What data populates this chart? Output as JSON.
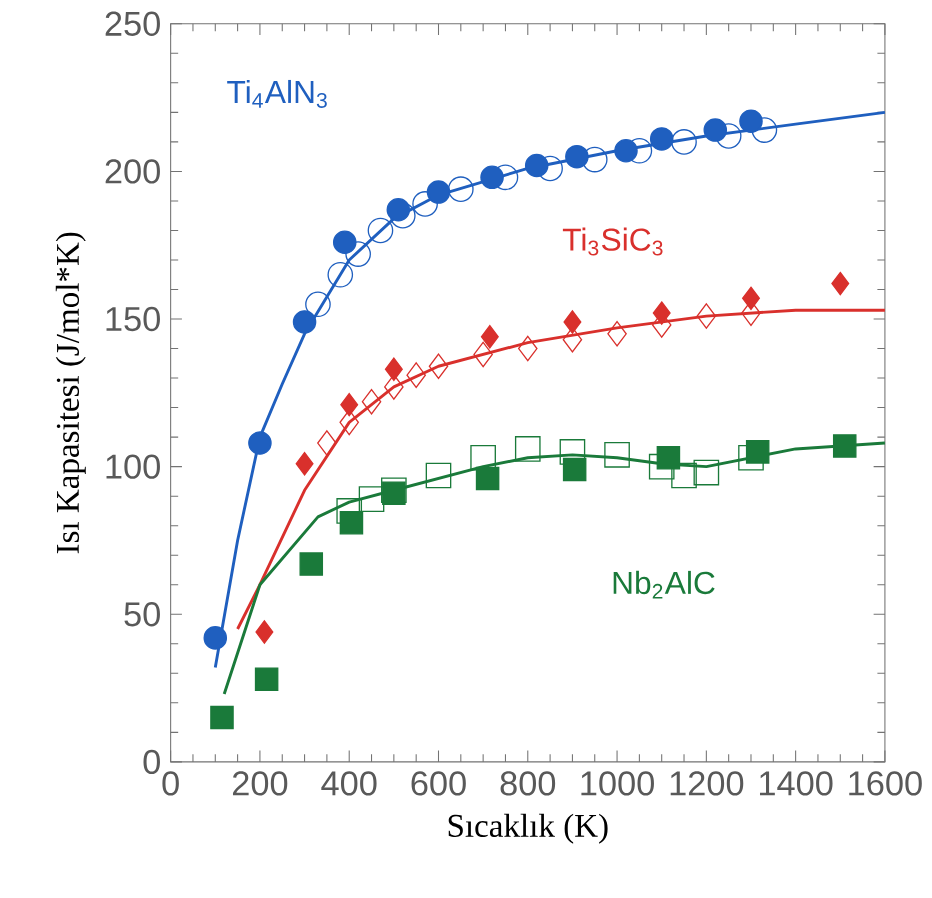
{
  "chart_data": {
    "type": "scatter",
    "xlabel": "Sıcaklık (K)",
    "ylabel": "Isı Kapasitesi (J/mol*K)",
    "xlim": [
      0,
      1600
    ],
    "ylim": [
      0,
      250
    ],
    "xticks": [
      0,
      200,
      400,
      600,
      800,
      1000,
      1200,
      1400,
      1600
    ],
    "yticks": [
      0,
      50,
      100,
      150,
      200,
      250
    ],
    "series": [
      {
        "type": "line",
        "name": "Ti$_{4}$AlN$_{3}$",
        "marker": "none",
        "color": "#1f5fbf",
        "x": [
          100,
          150,
          200,
          250,
          300,
          400,
          500,
          600,
          800,
          1000,
          1200,
          1400,
          1600
        ],
        "values": [
          32,
          75,
          110,
          128,
          145,
          170,
          184,
          192,
          201,
          207,
          212,
          216,
          220
        ]
      },
      {
        "type": "line",
        "name": "Ti$_{3}$SiC$_{3}$",
        "marker": "none",
        "color": "#d9302c",
        "x": [
          150,
          200,
          300,
          400,
          500,
          600,
          800,
          1000,
          1200,
          1400,
          1600
        ],
        "values": [
          45,
          60,
          92,
          115,
          127,
          134,
          142,
          147,
          151,
          153,
          153
        ]
      },
      {
        "type": "line",
        "name": "Nb$_{2}$AlC",
        "marker": "none",
        "color": "#1a7a3a",
        "x": [
          120,
          200,
          330,
          400,
          500,
          700,
          800,
          900,
          1000,
          1100,
          1200,
          1300,
          1400,
          1600
        ],
        "values": [
          23,
          60,
          83,
          88,
          92,
          100,
          103,
          104,
          103,
          101,
          100,
          103,
          106,
          108
        ]
      },
      {
        "marker": "circle",
        "color": "#1f5fbf",
        "x": [
          330,
          380,
          420,
          470,
          520,
          570,
          650,
          750,
          850,
          950,
          1050,
          1150,
          1250,
          1330
        ],
        "values": [
          155,
          165,
          172,
          180,
          185,
          189,
          194,
          198,
          201,
          204,
          207,
          210,
          212,
          214
        ]
      },
      {
        "marker": "diamond",
        "color": "#d9302c",
        "x": [
          350,
          400,
          450,
          500,
          550,
          600,
          700,
          800,
          900,
          1000,
          1100,
          1200,
          1300
        ],
        "values": [
          108,
          115,
          122,
          127,
          131,
          134,
          138,
          140,
          143,
          145,
          148,
          151,
          152
        ]
      },
      {
        "marker": "square",
        "color": "#1a7a3a",
        "x": [
          400,
          450,
          500,
          600,
          700,
          800,
          900,
          1000,
          1100,
          1150,
          1200,
          1300
        ],
        "values": [
          85,
          89,
          92,
          97,
          103,
          106,
          105,
          104,
          100,
          97,
          98,
          103
        ]
      },
      {
        "marker": "circle",
        "color": "#1f5fbf",
        "x": [
          100,
          200,
          300,
          390,
          510,
          600,
          720,
          820,
          910,
          1020,
          1100,
          1220,
          1300
        ],
        "values": [
          42,
          108,
          149,
          176,
          187,
          193,
          198,
          202,
          205,
          207,
          211,
          214,
          217
        ]
      },
      {
        "marker": "diamond",
        "color": "#d9302c",
        "x": [
          210,
          300,
          400,
          500,
          715,
          900,
          1100,
          1300,
          1500
        ],
        "values": [
          44,
          101,
          121,
          133,
          144,
          149,
          152,
          157,
          162
        ]
      },
      {
        "marker": "square",
        "color": "#1a7a3a",
        "x": [
          115,
          215,
          315,
          405,
          500,
          710,
          905,
          1115,
          1315,
          1510
        ],
        "values": [
          15,
          28,
          67,
          81,
          91,
          96,
          99,
          103,
          105,
          107
        ]
      }
    ]
  }
}
